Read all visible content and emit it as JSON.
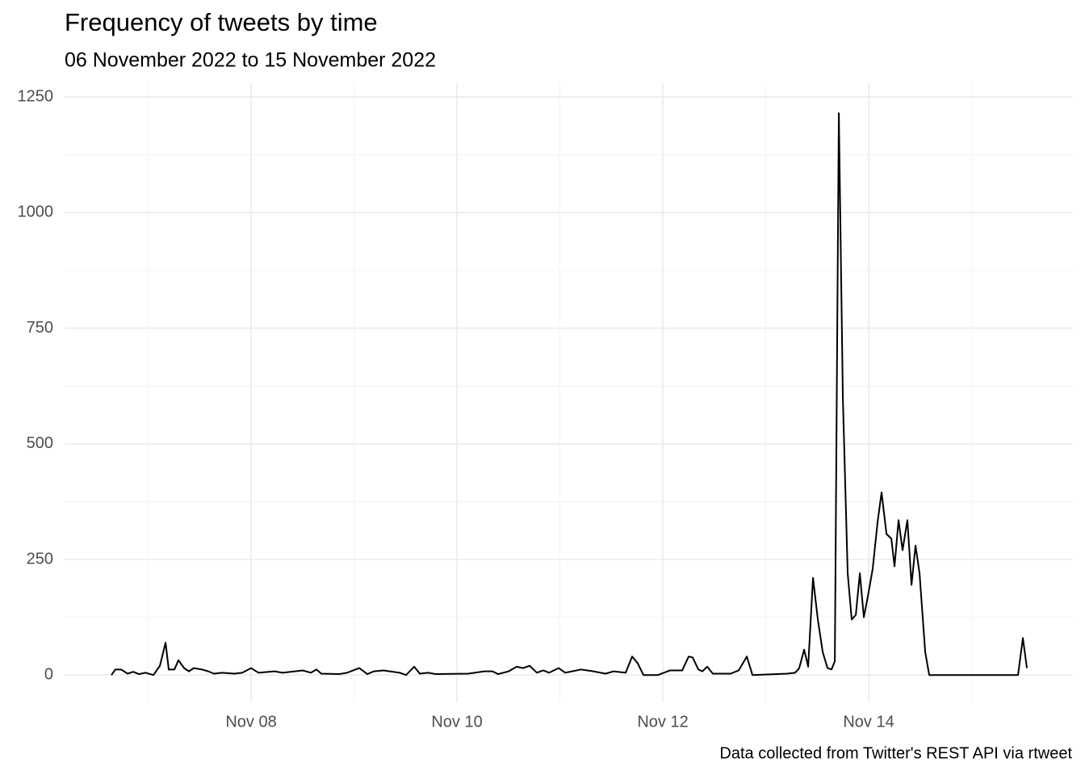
{
  "chart_data": {
    "type": "line",
    "title": "Frequency of tweets by time",
    "subtitle": "06 November 2022 to 15 November 2022",
    "caption": "Data collected from Twitter's REST API via rtweet",
    "x": [
      6.643,
      6.682,
      6.737,
      6.8,
      6.855,
      6.91,
      6.973,
      7.051,
      7.114,
      7.169,
      7.2,
      7.255,
      7.294,
      7.349,
      7.396,
      7.443,
      7.522,
      7.584,
      7.639,
      7.718,
      7.835,
      7.914,
      8.0,
      8.071,
      8.227,
      8.306,
      8.502,
      8.58,
      8.635,
      8.682,
      8.855,
      8.933,
      9.051,
      9.129,
      9.192,
      9.286,
      9.443,
      9.506,
      9.584,
      9.639,
      9.718,
      9.796,
      10.11,
      10.267,
      10.345,
      10.4,
      10.502,
      10.58,
      10.643,
      10.706,
      10.776,
      10.839,
      10.894,
      10.988,
      11.051,
      11.208,
      11.325,
      11.443,
      11.522,
      11.639,
      11.702,
      11.757,
      11.812,
      11.953,
      12.071,
      12.188,
      12.251,
      12.29,
      12.345,
      12.384,
      12.431,
      12.486,
      12.659,
      12.737,
      12.816,
      12.871,
      13.208,
      13.286,
      13.325,
      13.373,
      13.412,
      13.459,
      13.506,
      13.553,
      13.6,
      13.639,
      13.671,
      13.71,
      13.749,
      13.796,
      13.835,
      13.875,
      13.914,
      13.953,
      13.992,
      14.039,
      14.086,
      14.125,
      14.173,
      14.22,
      14.251,
      14.29,
      14.329,
      14.376,
      14.416,
      14.455,
      14.494,
      14.549,
      14.588,
      15.451,
      15.498,
      15.537
    ],
    "series": [
      {
        "color": "#000000",
        "values": [
          0,
          12,
          12,
          3,
          7,
          2,
          5,
          0,
          20,
          70,
          12,
          12,
          32,
          15,
          8,
          15,
          12,
          8,
          3,
          5,
          3,
          5,
          15,
          5,
          8,
          5,
          10,
          5,
          12,
          3,
          2,
          5,
          15,
          2,
          8,
          10,
          5,
          0,
          18,
          3,
          5,
          2,
          3,
          8,
          8,
          2,
          8,
          18,
          15,
          20,
          5,
          10,
          5,
          15,
          5,
          12,
          8,
          3,
          8,
          5,
          40,
          25,
          0,
          0,
          10,
          10,
          40,
          38,
          12,
          8,
          18,
          3,
          3,
          10,
          40,
          0,
          3,
          5,
          15,
          55,
          18,
          210,
          120,
          50,
          15,
          12,
          30,
          1215,
          600,
          220,
          120,
          130,
          220,
          125,
          170,
          230,
          330,
          395,
          305,
          295,
          235,
          335,
          270,
          335,
          195,
          280,
          220,
          50,
          0,
          0,
          80,
          15
        ]
      }
    ],
    "xlim": [
      6.188,
      15.976
    ],
    "xticks": [
      {
        "value": 8,
        "label": "Nov 08"
      },
      {
        "value": 10,
        "label": "Nov 10"
      },
      {
        "value": 12,
        "label": "Nov 12"
      },
      {
        "value": 14,
        "label": "Nov 14"
      }
    ],
    "x_minor_ticks": [
      7,
      9,
      11,
      13,
      15
    ],
    "ylim": [
      -59,
      1280
    ],
    "yticks": [
      0,
      250,
      500,
      750,
      1000,
      1250
    ],
    "y_minor_ticks": [
      125,
      375,
      625,
      875,
      1125
    ],
    "grid": true
  }
}
